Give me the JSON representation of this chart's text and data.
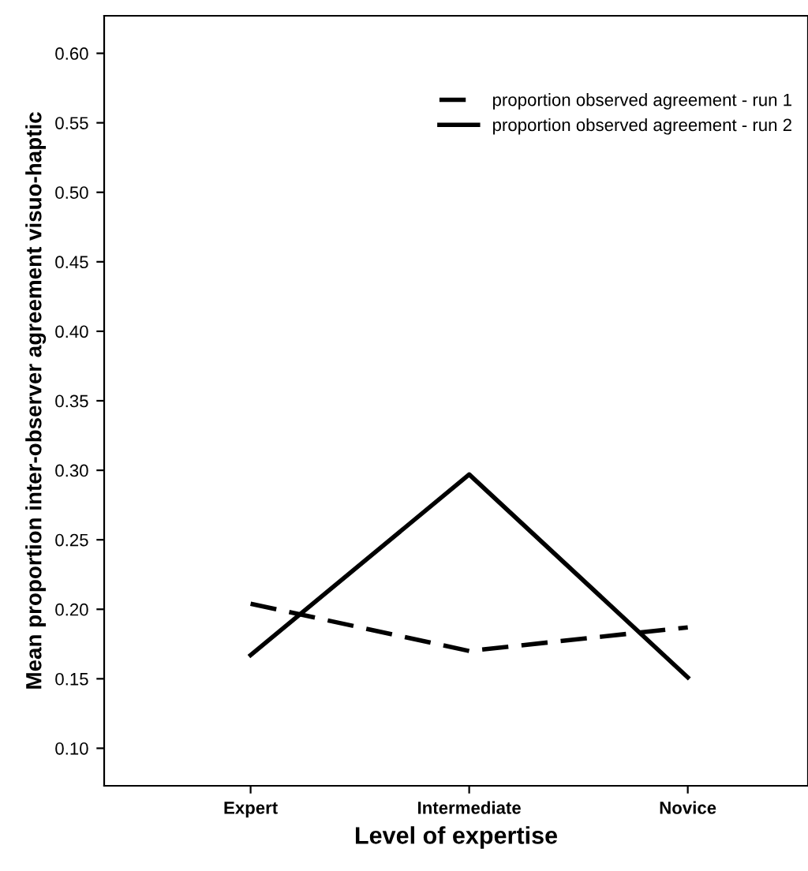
{
  "chart_data": {
    "type": "line",
    "xlabel": "Level of expertise",
    "ylabel": "Mean proportion inter-observer agreement visuo-haptic",
    "categories": [
      "Expert",
      "Intermediate",
      "Novice"
    ],
    "series": [
      {
        "name": "proportion observed agreement - run 1",
        "color": "#000000",
        "values": [
          0.204,
          0.17,
          0.187
        ],
        "line_style": "dashed"
      },
      {
        "name": "proportion observed agreement - run 2",
        "color": "#000000",
        "values": [
          0.167,
          0.297,
          0.151
        ],
        "line_style": "solid"
      }
    ],
    "ylim": [
      0.073,
      0.627
    ],
    "yticks": [
      {
        "value": 0.1,
        "label": "0.10"
      },
      {
        "value": 0.15,
        "label": "0.15"
      },
      {
        "value": 0.2,
        "label": "0.20"
      },
      {
        "value": 0.25,
        "label": "0.25"
      },
      {
        "value": 0.3,
        "label": "0.30"
      },
      {
        "value": 0.35,
        "label": "0.35"
      },
      {
        "value": 0.4,
        "label": "0.40"
      },
      {
        "value": 0.45,
        "label": "0.45"
      },
      {
        "value": 0.5,
        "label": "0.50"
      },
      {
        "value": 0.55,
        "label": "0.55"
      },
      {
        "value": 0.6,
        "label": "0.60"
      }
    ],
    "legend": "top right",
    "grid": false,
    "marker": "none"
  }
}
